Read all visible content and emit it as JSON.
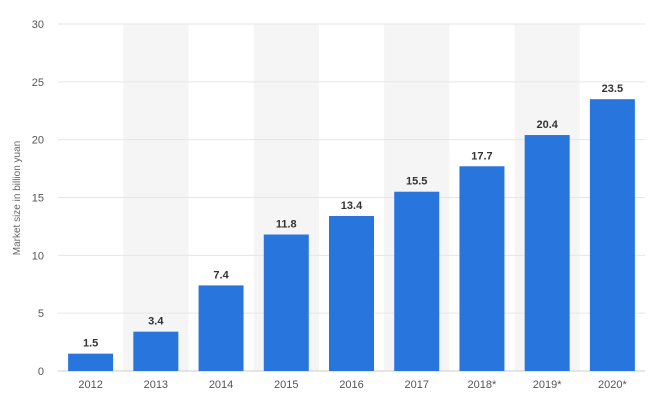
{
  "chart_data": {
    "type": "bar",
    "categories": [
      "2012",
      "2013",
      "2014",
      "2015",
      "2016",
      "2017",
      "2018*",
      "2019*",
      "2020*"
    ],
    "values": [
      1.5,
      3.4,
      7.4,
      11.8,
      13.4,
      15.5,
      17.7,
      20.4,
      23.5
    ],
    "value_labels": [
      "1.5",
      "3.4",
      "7.4",
      "11.8",
      "13.4",
      "15.5",
      "17.7",
      "20.4",
      "23.5"
    ],
    "title": "",
    "xlabel": "",
    "ylabel": "Market size in billion yuan",
    "ylim": [
      0,
      30
    ],
    "yticks": [
      0,
      5,
      10,
      15,
      20,
      25,
      30
    ],
    "grid": true,
    "alternating_column_shading": true,
    "colors": {
      "bar": "#2876dd",
      "shade": "#f5f5f5",
      "grid": "#e6e6e6"
    }
  }
}
